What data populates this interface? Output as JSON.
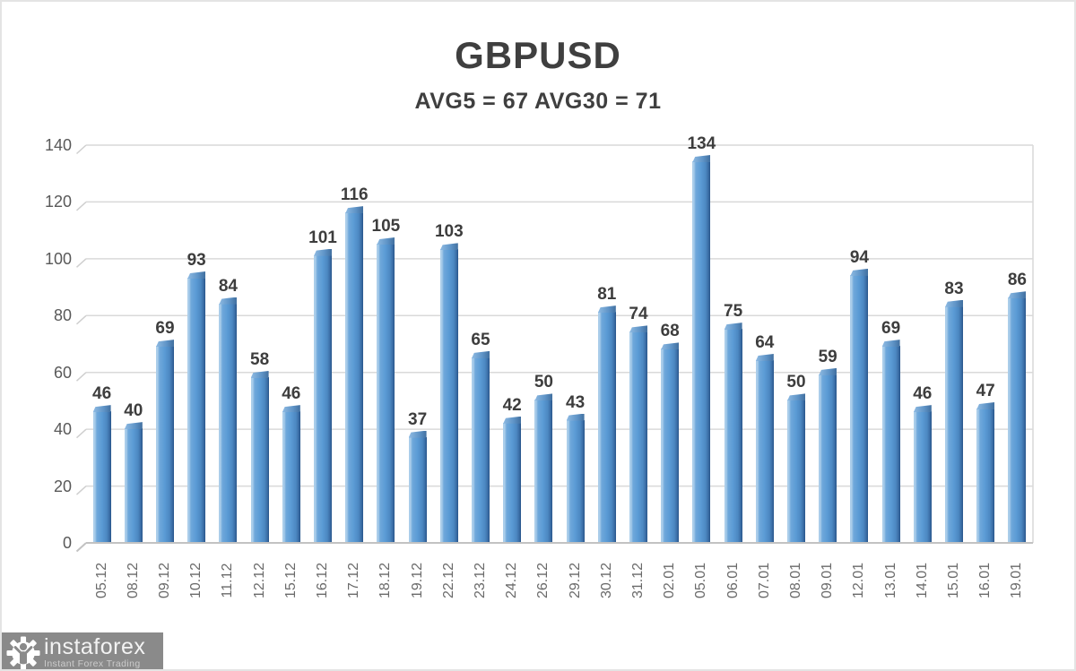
{
  "page": {
    "background": "#ffffff",
    "border_color": "#e4e4e4"
  },
  "chart_data": {
    "type": "bar",
    "title": "GBPUSD",
    "subtitle": "AVG5 = 67 AVG30 = 71",
    "avg5": 67,
    "avg30": 71,
    "categories": [
      "05.12",
      "08.12",
      "09.12",
      "10.12",
      "11.12",
      "12.12",
      "15.12",
      "16.12",
      "17.12",
      "18.12",
      "19.12",
      "22.12",
      "23.12",
      "24.12",
      "26.12",
      "29.12",
      "30.12",
      "31.12",
      "02.01",
      "05.01",
      "06.01",
      "07.01",
      "08.01",
      "09.01",
      "12.01",
      "13.01",
      "14.01",
      "15.01",
      "16.01",
      "19.01"
    ],
    "values": [
      46,
      40,
      69,
      93,
      84,
      58,
      46,
      101,
      116,
      105,
      37,
      103,
      65,
      42,
      50,
      43,
      81,
      74,
      68,
      134,
      75,
      64,
      50,
      59,
      94,
      69,
      46,
      83,
      47,
      86
    ],
    "xlabel": "",
    "ylabel": "",
    "ylim": [
      0,
      140
    ],
    "yticks": [
      0,
      20,
      40,
      60,
      80,
      100,
      120,
      140
    ],
    "grid": true,
    "legend": false,
    "style_3d": true,
    "colors": {
      "bar_mid": "#5b9bd5",
      "bar_highlight": "#aacdea",
      "bar_shadow": "#2d5c92",
      "gridline": "#d9d9d9",
      "floor_line": "#c2c2c2",
      "value_label": "#3d3d3d",
      "ytick_label": "#595959",
      "xtick_label": "#6a6a6a",
      "title": "#3f3f3f"
    }
  },
  "watermark": {
    "brand": "instaforex",
    "tagline": "Instant Forex Trading",
    "icon": "instaforex-gear-person-icon",
    "badge_color": "#8a8a8a",
    "brand_color": "#f3f3f3",
    "tagline_color": "#cccccc"
  }
}
